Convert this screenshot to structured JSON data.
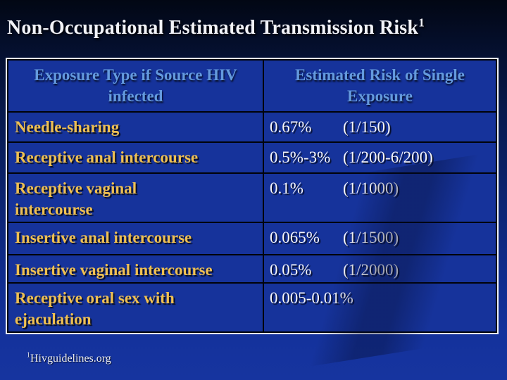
{
  "slide": {
    "title": "Non-Occupational Estimated Transmission Risk",
    "title_superscript": "1",
    "footnote_superscript": "1",
    "footnote": "Hivguidelines.org"
  },
  "table": {
    "headers": [
      "Exposure Type if Source HIV infected",
      "Estimated Risk of Single Exposure"
    ],
    "rows": [
      {
        "exposure": "Needle-sharing",
        "pct": "0.67%",
        "fraction": "(1/150)"
      },
      {
        "exposure": "Receptive anal intercourse",
        "pct": "0.5%-3%",
        "fraction": "(1/200-6/200)"
      },
      {
        "exposure": "Receptive vaginal\nintercourse",
        "pct": "0.1%",
        "fraction": "(1/1000)"
      },
      {
        "exposure": "Insertive anal intercourse",
        "pct": "0.065%",
        "fraction": "(1/1500)"
      },
      {
        "exposure": "Insertive vaginal intercourse",
        "pct": "0.05%",
        "fraction": "(1/2000)"
      },
      {
        "exposure": "Receptive oral sex with\nejaculation",
        "pct": "0.005-0.01%",
        "fraction": ""
      }
    ]
  },
  "colors": {
    "background_top": "#020714",
    "background_bottom": "#16349f",
    "cell_background": "#16339b",
    "outer_border": "#eef1f6",
    "inner_border": "#010309",
    "header_text": "#649ade",
    "exposure_text": "#efc052",
    "value_text": "#f6f6fa",
    "title_text": "#f2f3f8"
  }
}
